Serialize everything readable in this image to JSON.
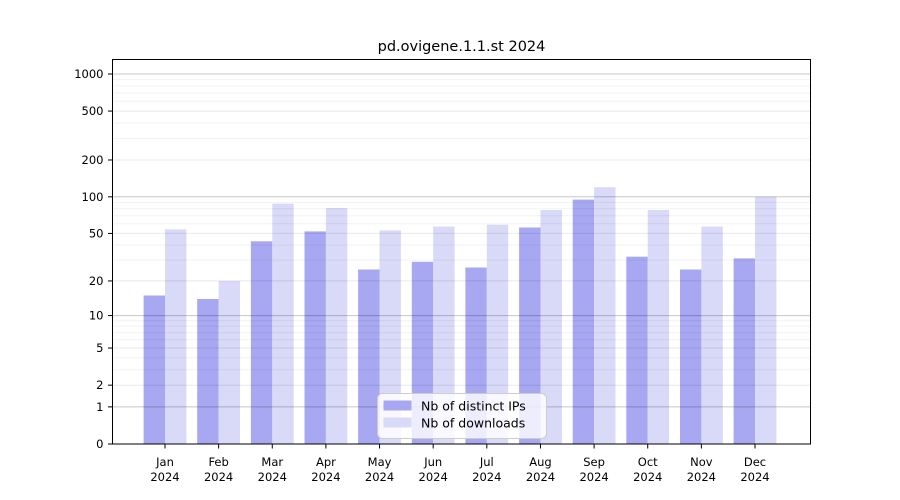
{
  "page": {
    "background": "#ffffff"
  },
  "chart_data": {
    "type": "bar",
    "title": "pd.ovigene.1.1.st 2024",
    "x_categories": [
      "Jan",
      "Feb",
      "Mar",
      "Apr",
      "May",
      "Jun",
      "Jul",
      "Aug",
      "Sep",
      "Oct",
      "Nov",
      "Dec"
    ],
    "x_sublabel": "2024",
    "xlabel": "",
    "ylabel": "",
    "y_scale": "log1p",
    "y_ticks": [
      0,
      1,
      2,
      5,
      10,
      20,
      50,
      100,
      200,
      500,
      1000
    ],
    "ylim": [
      0,
      1200
    ],
    "grid": true,
    "legend_position": "bottom-center",
    "series": [
      {
        "name": "Nb of distinct IPs",
        "color": "#a7a7f2",
        "values": [
          15,
          14,
          43,
          52,
          25,
          29,
          26,
          56,
          95,
          32,
          25,
          31
        ]
      },
      {
        "name": "Nb of downloads",
        "color": "#d9d9f8",
        "values": [
          54,
          20,
          88,
          81,
          53,
          57,
          59,
          78,
          120,
          78,
          57,
          100
        ]
      }
    ],
    "colors": {
      "spine": "#000000",
      "grid_major": "rgba(0,0,0,0.22)",
      "grid_mid": "rgba(0,0,0,0.09)",
      "grid_minor": "rgba(0,0,0,0.05)",
      "legend_border": "#cccccc",
      "legend_bg": "#ffffff"
    }
  }
}
